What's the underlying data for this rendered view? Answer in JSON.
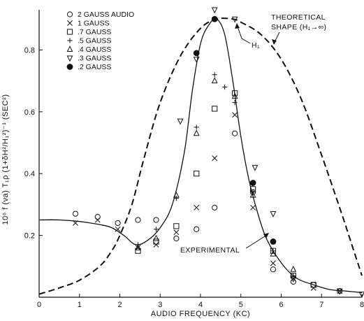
{
  "chart_data": {
    "type": "scatter",
    "xlabel": "AUDIO FREQUENCY (KC)",
    "ylabel": "10⁶ f (νa) T₁ρ (1+δH²/H₁²)⁻¹ (SEC²)",
    "xlim": [
      0,
      8
    ],
    "ylim": [
      0,
      0.93
    ],
    "x_ticks": [
      "0",
      "1",
      "2",
      "3",
      "4",
      "5",
      "6",
      "7",
      "8"
    ],
    "y_ticks": [
      {
        "value": 0.2,
        "label": "0.2"
      },
      {
        "value": 0.4,
        "label": "0.4"
      },
      {
        "value": 0.6,
        "label": "0.6"
      },
      {
        "value": 0.8,
        "label": "0.8"
      }
    ],
    "grid": false,
    "legend_position": "top-left",
    "series": [
      {
        "name": "2 GAUSS AUDIO",
        "marker": "circle-open",
        "x": [
          0.9,
          1.45,
          1.95,
          2.45,
          2.9,
          3.4,
          3.9,
          4.35,
          4.85,
          5.3,
          5.8,
          6.3,
          6.8,
          7.45
        ],
        "y": [
          0.27,
          0.26,
          0.24,
          0.25,
          0.25,
          0.19,
          0.22,
          0.29,
          0.53,
          0.34,
          0.09,
          0.05,
          0.04,
          0.02
        ]
      },
      {
        "name": "1 GAUSS",
        "marker": "x",
        "x": [
          0.9,
          1.45,
          1.95,
          2.45,
          2.9,
          3.4,
          3.9,
          4.35,
          4.85,
          5.3,
          5.8,
          6.3,
          6.8,
          7.45
        ],
        "y": [
          0.24,
          0.25,
          0.22,
          0.16,
          0.17,
          0.21,
          0.29,
          0.45,
          0.59,
          0.29,
          0.11,
          0.06,
          0.03,
          0.02
        ]
      },
      {
        "name": ".7 GAUSS",
        "marker": "square-open",
        "x": [
          2.45,
          2.9,
          3.4,
          3.9,
          4.35,
          4.85,
          5.3,
          5.8,
          6.3,
          6.8
        ],
        "y": [
          0.15,
          0.18,
          0.23,
          0.4,
          0.61,
          0.66,
          0.35,
          0.15,
          0.07,
          0.04
        ]
      },
      {
        "name": ".5 GAUSS",
        "marker": "plus",
        "x": [
          2.45,
          2.9,
          3.4,
          3.9,
          4.35,
          4.6,
          4.85,
          5.3,
          5.8,
          6.3
        ],
        "y": [
          0.17,
          0.22,
          0.32,
          0.55,
          0.72,
          0.68,
          0.63,
          0.34,
          0.15,
          0.07
        ]
      },
      {
        "name": ".4 GAUSS",
        "marker": "triangle-up-open",
        "x": [
          2.45,
          2.9,
          3.4,
          3.9,
          4.35,
          4.85,
          5.3,
          5.8,
          6.3
        ],
        "y": [
          0.16,
          0.19,
          0.33,
          0.53,
          0.7,
          0.65,
          0.33,
          0.14,
          0.09
        ]
      },
      {
        "name": ".3 GAUSS",
        "marker": "triangle-down-open",
        "x": [
          3.5,
          3.9,
          4.35,
          4.85,
          5.35,
          5.8,
          6.3,
          7.45,
          8.0
        ],
        "y": [
          0.57,
          0.77,
          0.93,
          0.9,
          0.42,
          0.27,
          0.06,
          0.02,
          0.01
        ]
      },
      {
        "name": ".2 GAUSS",
        "marker": "circle-filled",
        "x": [
          3.9,
          4.35,
          5.3,
          5.8
        ],
        "y": [
          0.79,
          0.9,
          0.37,
          0.18
        ]
      }
    ],
    "curves": {
      "experimental": {
        "x": [
          0,
          0.5,
          1.0,
          1.5,
          1.8,
          2.1,
          2.4,
          2.7,
          3.0,
          3.3,
          3.6,
          3.8,
          4.0,
          4.2,
          4.4,
          4.6,
          4.8,
          5.0,
          5.2,
          5.4,
          5.6,
          5.8,
          6.1,
          6.4,
          6.8,
          7.2,
          7.6,
          8.0
        ],
        "y": [
          0.25,
          0.25,
          0.245,
          0.235,
          0.225,
          0.2,
          0.17,
          0.185,
          0.225,
          0.3,
          0.47,
          0.67,
          0.82,
          0.88,
          0.9,
          0.85,
          0.7,
          0.52,
          0.38,
          0.28,
          0.2,
          0.15,
          0.095,
          0.06,
          0.04,
          0.025,
          0.02,
          0.015
        ]
      },
      "theoretical": {
        "x": [
          0,
          0.5,
          1.0,
          1.5,
          1.8,
          2.0,
          2.3,
          2.6,
          3.0,
          3.5,
          4.0,
          4.4,
          4.8,
          5.0,
          5.5,
          6.0,
          6.5,
          7.0,
          7.5,
          7.8,
          8.0
        ],
        "y": [
          0.01,
          0.03,
          0.055,
          0.1,
          0.15,
          0.2,
          0.3,
          0.45,
          0.63,
          0.78,
          0.87,
          0.9,
          0.9,
          0.89,
          0.85,
          0.77,
          0.64,
          0.46,
          0.27,
          0.15,
          0.07
        ]
      }
    },
    "annotations": {
      "theoretical_line1": "THEORETICAL",
      "theoretical_line2": "SHAPE (H₁→∞)",
      "h1": "H₁",
      "experimental": "EXPERIMENTAL"
    }
  }
}
